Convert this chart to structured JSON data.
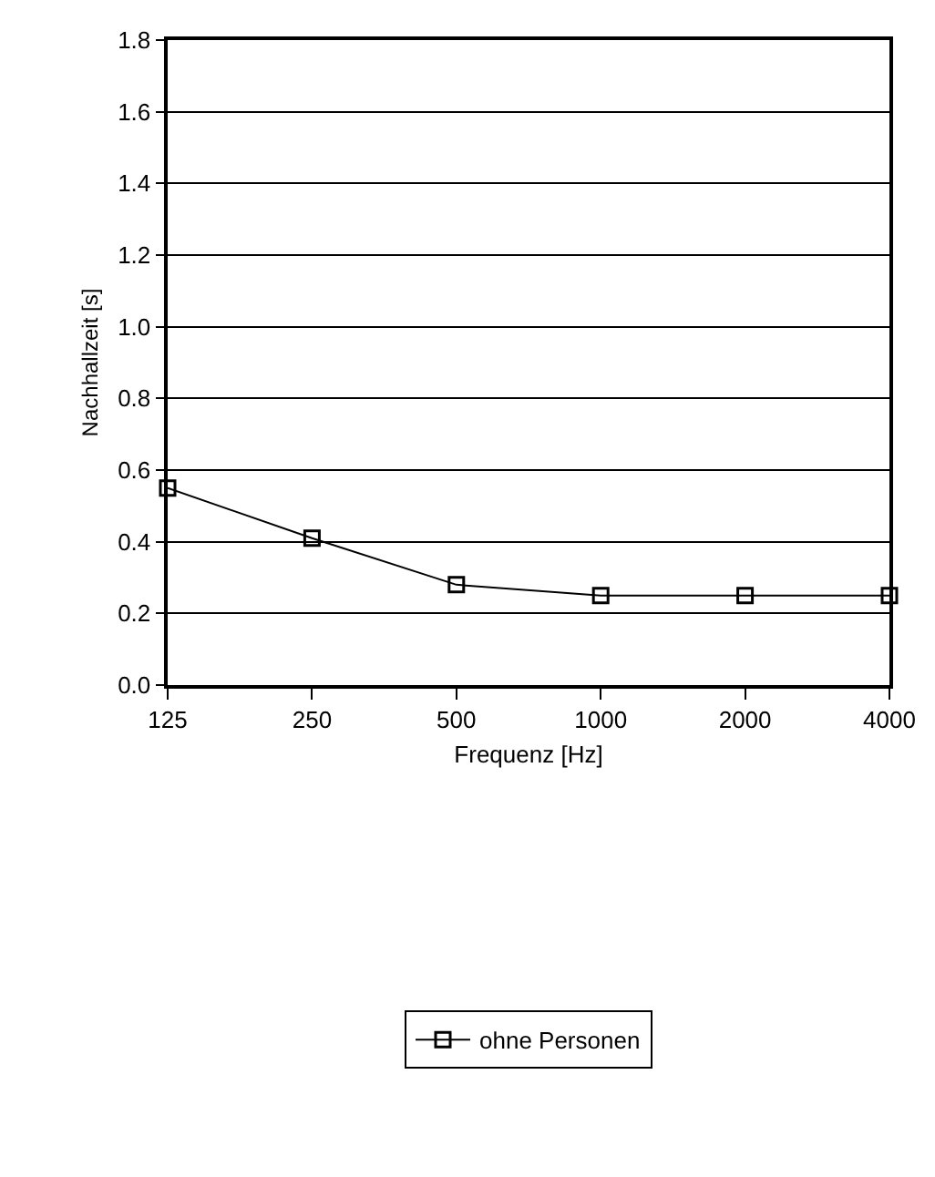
{
  "chart_data": {
    "type": "line",
    "xlabel": "Frequenz [Hz]",
    "ylabel": "Nachhallzeit [s]",
    "categories": [
      "125",
      "250",
      "500",
      "1000",
      "2000",
      "4000"
    ],
    "series": [
      {
        "name": "ohne Personen",
        "color": "#000000",
        "values": [
          0.55,
          0.41,
          0.28,
          0.25,
          0.25,
          0.25
        ]
      }
    ],
    "ylim": [
      0,
      1.8
    ],
    "yticks": [
      {
        "value": 0,
        "label": "0.0"
      },
      0.2,
      0.4,
      0.6,
      0.8,
      {
        "value": 1,
        "label": "1.0"
      },
      1.2,
      1.4,
      1.6,
      1.8
    ],
    "grid": "y",
    "legend": "bottom",
    "marker": "square",
    "line_style": "solid"
  }
}
